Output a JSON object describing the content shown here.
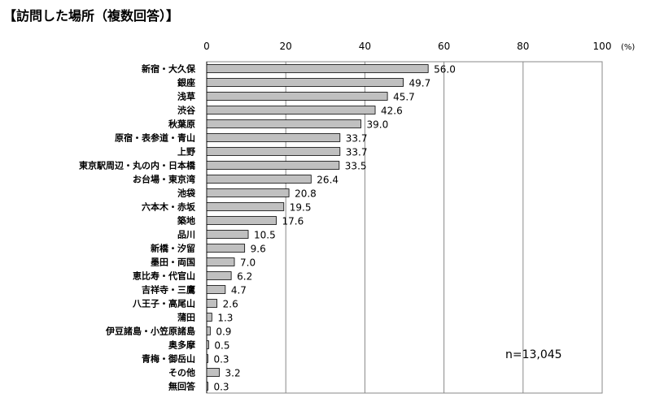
{
  "title": "【訪問した場所（複数回答）】",
  "chart_data": {
    "type": "bar",
    "orientation": "horizontal",
    "title": "【訪問した場所（複数回答）】",
    "xlabel": "",
    "ylabel": "",
    "unit": "(%)",
    "xlim": [
      0,
      100
    ],
    "ticks": [
      0,
      20,
      40,
      60,
      80,
      100
    ],
    "grid": true,
    "note": "n=13,045",
    "categories": [
      "新宿・大久保",
      "銀座",
      "浅草",
      "渋谷",
      "秋葉原",
      "原宿・表参道・青山",
      "上野",
      "東京駅周辺・丸の内・日本橋",
      "お台場・東京湾",
      "池袋",
      "六本木・赤坂",
      "築地",
      "品川",
      "新橋・汐留",
      "墨田・両国",
      "恵比寿・代官山",
      "吉祥寺・三鷹",
      "八王子・高尾山",
      "蒲田",
      "伊豆諸島・小笠原諸島",
      "奥多摩",
      "青梅・御岳山",
      "その他",
      "無回答"
    ],
    "values": [
      56.0,
      49.7,
      45.7,
      42.6,
      39.0,
      33.7,
      33.7,
      33.5,
      26.4,
      20.8,
      19.5,
      17.6,
      10.5,
      9.6,
      7.0,
      6.2,
      4.7,
      2.6,
      1.3,
      0.9,
      0.5,
      0.3,
      3.2,
      0.3
    ],
    "value_labels": [
      "56.0",
      "49.7",
      "45.7",
      "42.6",
      "39.0",
      "33.7",
      "33.7",
      "33.5",
      "26.4",
      "20.8",
      "19.5",
      "17.6",
      "10.5",
      "9.6",
      "7.0",
      "6.2",
      "4.7",
      "2.6",
      "1.3",
      "0.9",
      "0.5",
      "0.3",
      "3.2",
      "0.3"
    ],
    "colors": {
      "bar_fill": "#c0c0c0",
      "bar_stroke": "#000000",
      "grid": "#888888"
    }
  }
}
